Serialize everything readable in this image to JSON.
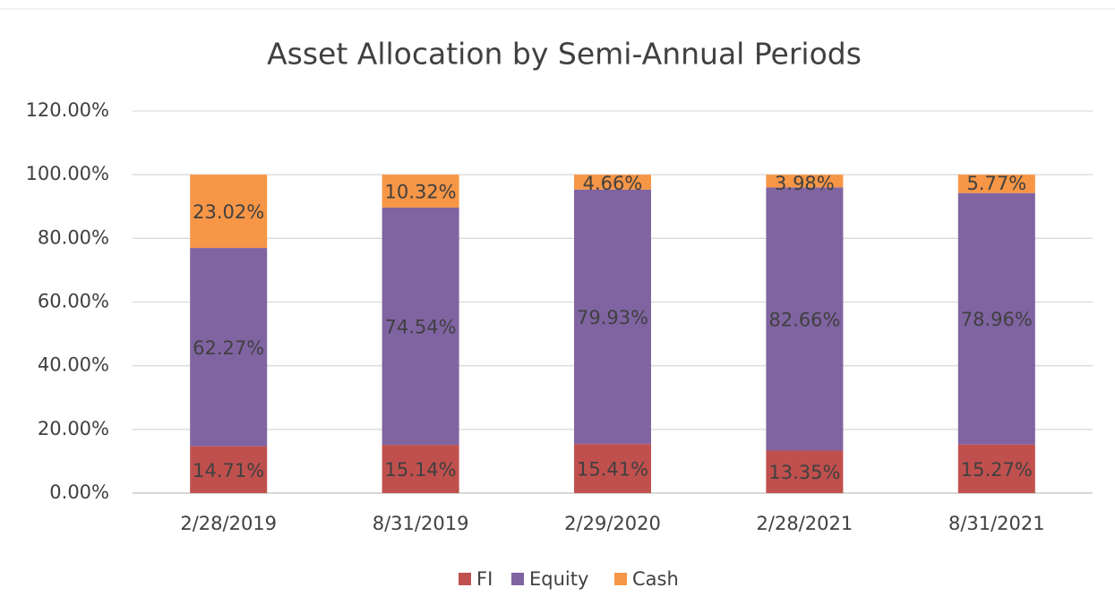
{
  "chart_data": {
    "type": "bar",
    "stacked": true,
    "title": "Asset Allocation by Semi-Annual Periods",
    "categories": [
      "2/28/2019",
      "8/31/2019",
      "2/29/2020",
      "2/28/2021",
      "8/31/2021"
    ],
    "series": [
      {
        "name": "FI",
        "color": "#c0504d",
        "values": [
          14.71,
          15.14,
          15.41,
          13.35,
          15.27
        ],
        "value_labels": [
          "14.71%",
          "15.14%",
          "15.41%",
          "13.35%",
          "15.27%"
        ]
      },
      {
        "name": "Equity",
        "color": "#8064a2",
        "values": [
          62.27,
          74.54,
          79.93,
          82.66,
          78.96
        ],
        "value_labels": [
          "62.27%",
          "74.54%",
          "79.93%",
          "82.66%",
          "78.96%"
        ]
      },
      {
        "name": "Cash",
        "color": "#f79646",
        "values": [
          23.02,
          10.32,
          4.66,
          3.98,
          5.77
        ],
        "value_labels": [
          "23.02%",
          "10.32%",
          "4.66%",
          "3.98%",
          "5.77%"
        ]
      }
    ],
    "ylim": [
      0,
      120
    ],
    "yticks": [
      {
        "value": 0,
        "label": "0.00%"
      },
      {
        "value": 20,
        "label": "20.00%"
      },
      {
        "value": 40,
        "label": "40.00%"
      },
      {
        "value": 60,
        "label": "60.00%"
      },
      {
        "value": 80,
        "label": "80.00%"
      },
      {
        "value": 100,
        "label": "100.00%"
      },
      {
        "value": 120,
        "label": "120.00%"
      }
    ],
    "grid": true,
    "legend": "bottom"
  }
}
